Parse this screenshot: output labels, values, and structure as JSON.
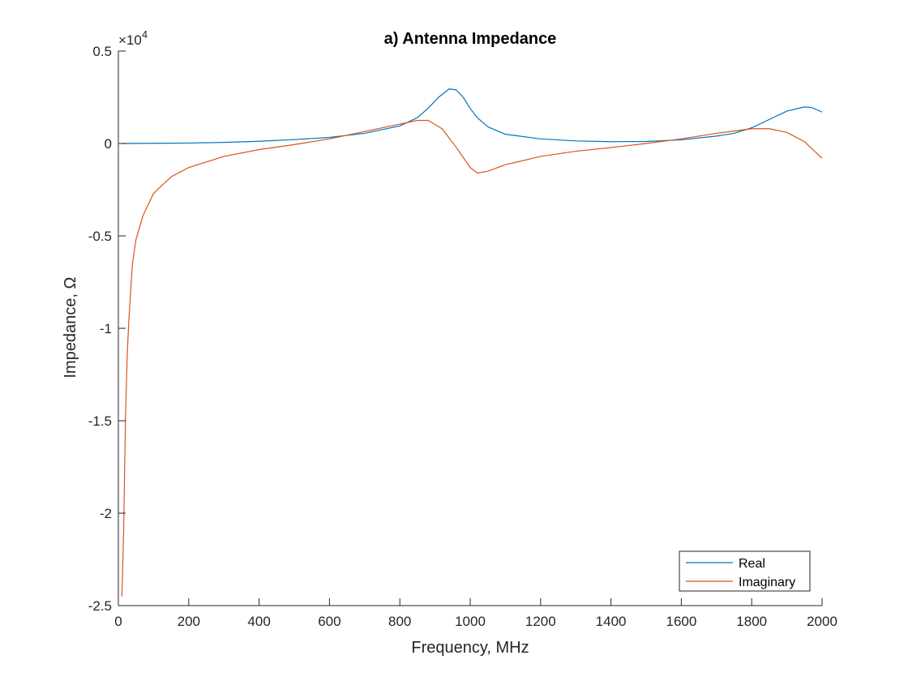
{
  "chart_data": {
    "type": "line",
    "title": "a) Antenna Impedance",
    "xlabel": "Frequency, MHz",
    "ylabel": "Impedance, Ω",
    "xlim": [
      0,
      2000
    ],
    "ylim": [
      -25000,
      5000
    ],
    "exponent_label": "×10",
    "exponent_power": "4",
    "x_ticks": [
      0,
      200,
      400,
      600,
      800,
      1000,
      1200,
      1400,
      1600,
      1800,
      2000
    ],
    "x_tick_labels": [
      "0",
      "200",
      "400",
      "600",
      "800",
      "1000",
      "1200",
      "1400",
      "1600",
      "1800",
      "2000"
    ],
    "y_ticks": [
      -25000,
      -20000,
      -15000,
      -10000,
      -5000,
      0,
      5000
    ],
    "y_tick_labels": [
      "-2.5",
      "-2",
      "-1.5",
      "-1",
      "-0.5",
      "0",
      "0.5"
    ],
    "grid": false,
    "legend_position": "bottom-right",
    "series": [
      {
        "name": "Real",
        "color": "#0072BD",
        "points": [
          [
            10,
            0
          ],
          [
            100,
            10
          ],
          [
            200,
            25
          ],
          [
            300,
            60
          ],
          [
            400,
            120
          ],
          [
            500,
            210
          ],
          [
            600,
            330
          ],
          [
            700,
            550
          ],
          [
            800,
            950
          ],
          [
            850,
            1400
          ],
          [
            880,
            1900
          ],
          [
            910,
            2500
          ],
          [
            940,
            2950
          ],
          [
            960,
            2900
          ],
          [
            980,
            2500
          ],
          [
            1000,
            1900
          ],
          [
            1020,
            1400
          ],
          [
            1050,
            900
          ],
          [
            1100,
            500
          ],
          [
            1200,
            250
          ],
          [
            1300,
            140
          ],
          [
            1400,
            100
          ],
          [
            1500,
            110
          ],
          [
            1600,
            200
          ],
          [
            1700,
            400
          ],
          [
            1750,
            550
          ],
          [
            1800,
            850
          ],
          [
            1850,
            1300
          ],
          [
            1900,
            1750
          ],
          [
            1950,
            1980
          ],
          [
            1970,
            1950
          ],
          [
            2000,
            1700
          ]
        ]
      },
      {
        "name": "Imaginary",
        "color": "#D95319",
        "points": [
          [
            10,
            -24500
          ],
          [
            15,
            -21000
          ],
          [
            20,
            -15000
          ],
          [
            25,
            -11500
          ],
          [
            30,
            -9500
          ],
          [
            40,
            -6500
          ],
          [
            50,
            -5200
          ],
          [
            70,
            -3900
          ],
          [
            100,
            -2700
          ],
          [
            150,
            -1800
          ],
          [
            200,
            -1300
          ],
          [
            300,
            -700
          ],
          [
            400,
            -330
          ],
          [
            500,
            -60
          ],
          [
            600,
            250
          ],
          [
            700,
            650
          ],
          [
            800,
            1050
          ],
          [
            850,
            1250
          ],
          [
            880,
            1250
          ],
          [
            920,
            800
          ],
          [
            960,
            -200
          ],
          [
            1000,
            -1300
          ],
          [
            1020,
            -1600
          ],
          [
            1050,
            -1500
          ],
          [
            1100,
            -1150
          ],
          [
            1200,
            -700
          ],
          [
            1300,
            -420
          ],
          [
            1400,
            -220
          ],
          [
            1500,
            0
          ],
          [
            1600,
            250
          ],
          [
            1700,
            550
          ],
          [
            1800,
            800
          ],
          [
            1850,
            800
          ],
          [
            1900,
            600
          ],
          [
            1950,
            100
          ],
          [
            2000,
            -800
          ]
        ]
      }
    ]
  }
}
